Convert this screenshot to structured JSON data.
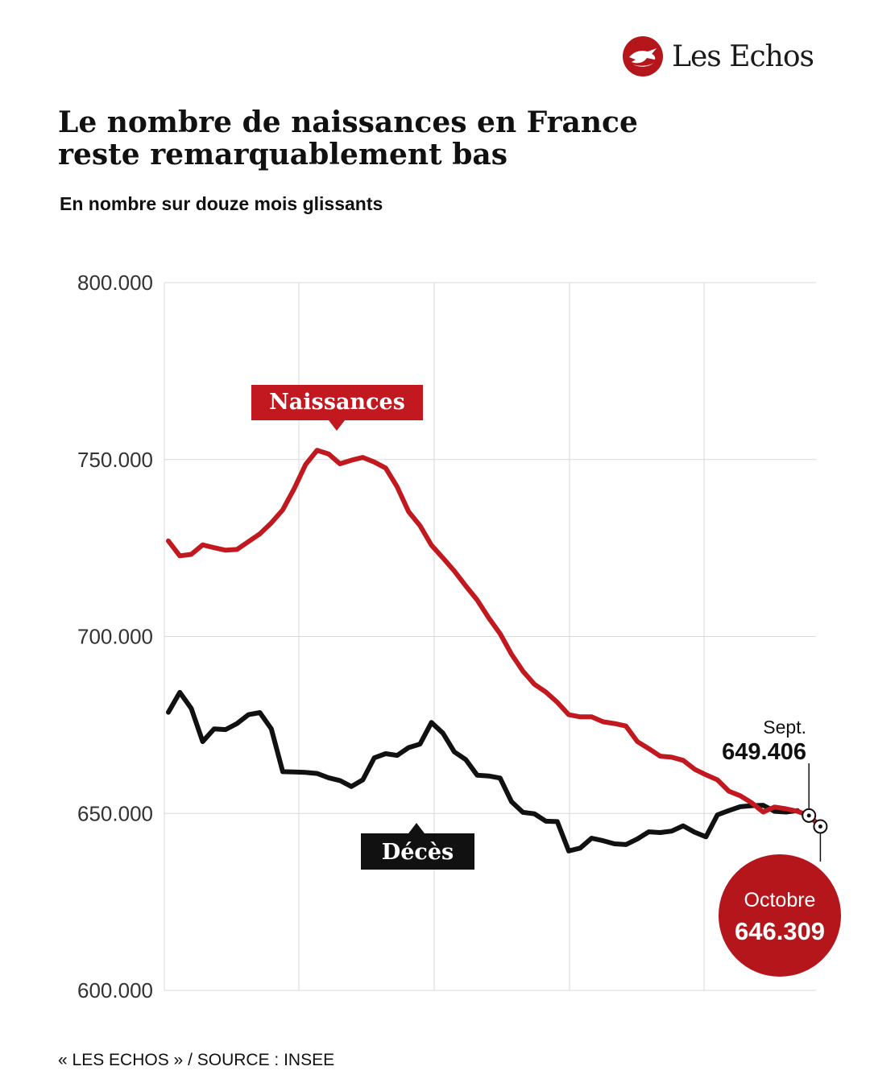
{
  "brand": {
    "name": "Les Echos",
    "logo_icon": "les-echos-bird-logo",
    "color": "#b5161b"
  },
  "header": {
    "title": "Le nombre de naissances en France reste remarquablement bas",
    "subtitle": "En nombre sur douze mois glissants"
  },
  "footer": {
    "source": "« LES ECHOS » / SOURCE : INSEE"
  },
  "chart_data": {
    "type": "line",
    "y_ticks": [
      "800.000",
      "750.000",
      "700.000",
      "650.000",
      "600.000"
    ],
    "ylim": [
      600000,
      800000
    ],
    "grid": true,
    "series": [
      {
        "name": "Naissances",
        "color": "#c1191f",
        "values": [
          727000,
          722800,
          723200,
          725900,
          725100,
          724400,
          724600,
          726800,
          729000,
          732100,
          735800,
          741800,
          748600,
          752600,
          751600,
          748800,
          749800,
          750600,
          749300,
          747600,
          742300,
          735300,
          731300,
          725800,
          722200,
          718500,
          714300,
          710300,
          705300,
          700800,
          695000,
          690200,
          686500,
          684300,
          681400,
          677900,
          677300,
          677300,
          675900,
          675400,
          674700,
          670300,
          668300,
          666200,
          665900,
          665000,
          662500,
          660900,
          659500,
          656300,
          655000,
          653000,
          650400,
          651800,
          651300,
          650600,
          649406,
          646309
        ]
      },
      {
        "name": "Décès",
        "color": "#111111",
        "values": [
          678600,
          684200,
          679700,
          670300,
          673900,
          673700,
          675400,
          677900,
          678500,
          673900,
          661800,
          661700,
          661600,
          661300,
          660100,
          659300,
          657600,
          659500,
          665700,
          666900,
          666400,
          668600,
          669600,
          675700,
          672700,
          667400,
          665200,
          660800,
          660600,
          660000,
          653300,
          650300,
          649900,
          647800,
          647700,
          639400,
          640200,
          643000,
          642300,
          641400,
          641200,
          642800,
          644800,
          644600,
          645000,
          646500,
          644700,
          643400,
          649600,
          650800,
          651900,
          652200,
          652300,
          650600,
          650400,
          650800
        ]
      }
    ],
    "annotations": {
      "naissances_label": "Naissances",
      "deces_label": "Décès",
      "sept_month": "Sept.",
      "sept_value": "649.406",
      "oct_month": "Octobre",
      "oct_value": "646.309"
    }
  }
}
